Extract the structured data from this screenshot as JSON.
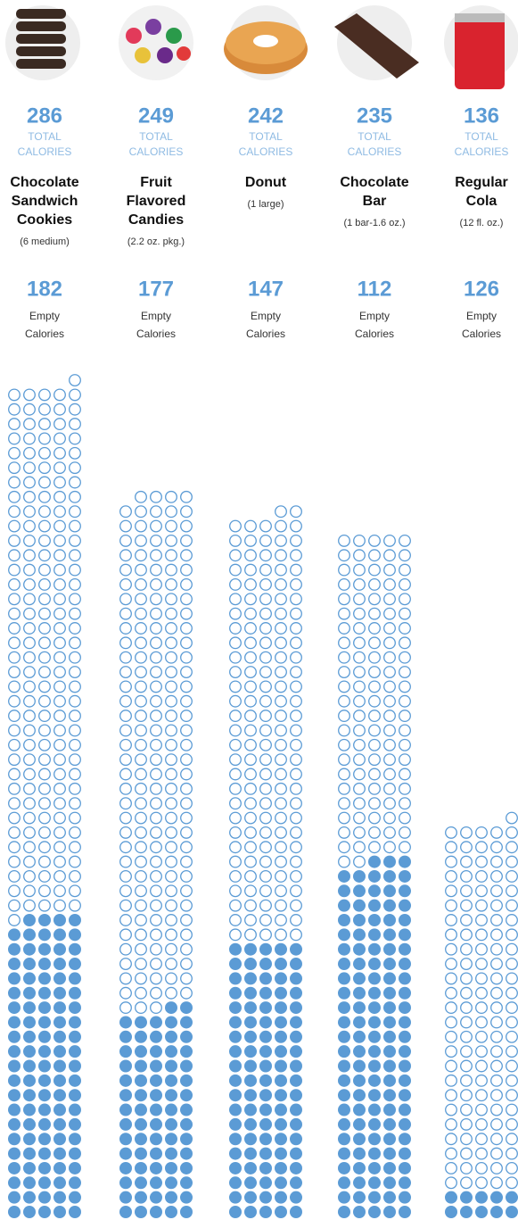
{
  "chart_data": {
    "type": "waffle",
    "total_label": [
      "TOTAL",
      "CALORIES"
    ],
    "empty_label": [
      "Empty",
      "Calories"
    ],
    "categories": [
      [
        "Chocolate",
        "Sandwich",
        "Cookies"
      ],
      [
        "Fruit",
        "Flavored",
        "Candies"
      ],
      [
        "Donut"
      ],
      [
        "Chocolate",
        "Bar"
      ],
      [
        "Regular",
        "Cola"
      ]
    ],
    "servings": [
      "(6 medium)",
      "(2.2 oz. pkg.)",
      "(1 large)",
      "(1 bar-1.6 oz.)",
      "(12 fl. oz.)"
    ],
    "totals": [
      286,
      249,
      242,
      235,
      136
    ],
    "empty": [
      182,
      177,
      147,
      112,
      126
    ],
    "color": "#5b9bd5"
  }
}
